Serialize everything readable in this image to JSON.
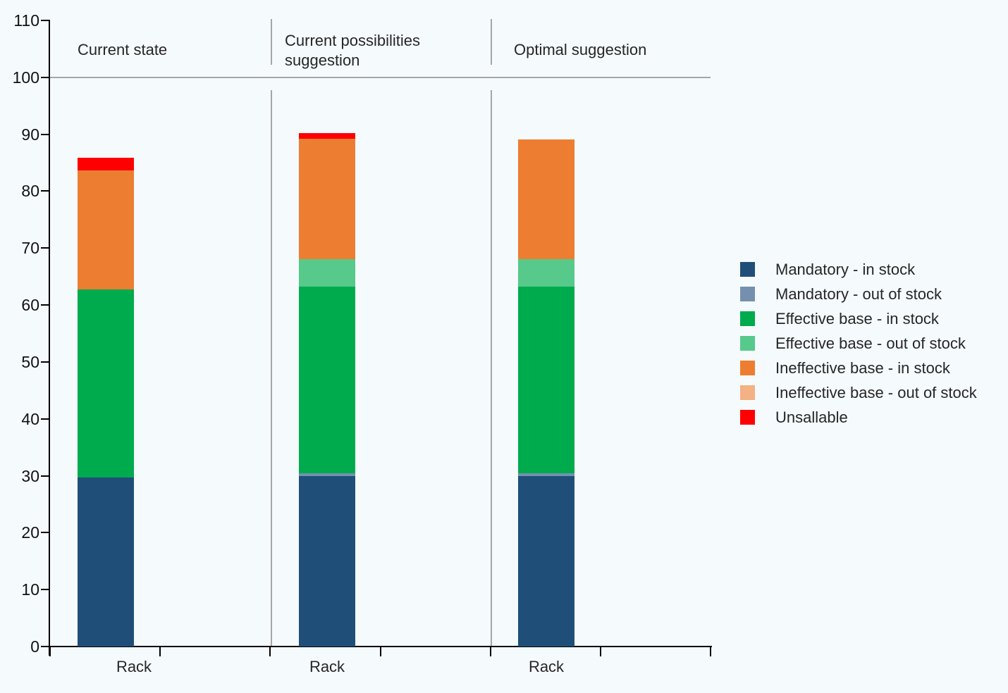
{
  "background": "#f5fafd",
  "colors": {
    "axis": "#000000",
    "grid_gray": "#a6a6a6",
    "text": "#262626"
  },
  "chart_data": {
    "type": "bar",
    "stacked": true,
    "title": "",
    "xlabel": "",
    "ylabel": "",
    "ylim": [
      0,
      110
    ],
    "yticks": [
      0,
      10,
      20,
      30,
      40,
      50,
      60,
      70,
      80,
      90,
      100,
      110
    ],
    "reference_line_y": 100,
    "grid": false,
    "legend_position": "right",
    "stack_order": [
      "mandatory_in",
      "mandatory_out",
      "effective_in",
      "effective_out",
      "ineffective_in",
      "ineffective_out",
      "unsallable"
    ],
    "panels": [
      {
        "title": "Current state",
        "bar_label": "Rack",
        "total": 85.9,
        "values": {
          "mandatory_in": 29.7,
          "mandatory_out": 0,
          "effective_in": 33.0,
          "effective_out": 0,
          "ineffective_in": 21.0,
          "ineffective_out": 0,
          "unsallable": 2.2
        }
      },
      {
        "title": "Current possibilities suggestion",
        "bar_label": "Rack",
        "total": 90.2,
        "values": {
          "mandatory_in": 29.9,
          "mandatory_out": 0.5,
          "effective_in": 32.8,
          "effective_out": 4.9,
          "ineffective_in": 21.1,
          "ineffective_out": 0,
          "unsallable": 1.0
        }
      },
      {
        "title": "Optimal suggestion",
        "bar_label": "Rack",
        "total": 89.1,
        "values": {
          "mandatory_in": 29.9,
          "mandatory_out": 0.5,
          "effective_in": 32.8,
          "effective_out": 4.9,
          "ineffective_in": 21.0,
          "ineffective_out": 0,
          "unsallable": 0
        }
      }
    ]
  },
  "legend": {
    "items": [
      {
        "key": "mandatory_in",
        "label": "Mandatory - in stock",
        "color": "#1f4f78"
      },
      {
        "key": "mandatory_out",
        "label": "Mandatory - out of stock",
        "color": "#7590af"
      },
      {
        "key": "effective_in",
        "label": "Effective base - in stock",
        "color": "#00ab4e"
      },
      {
        "key": "effective_out",
        "label": "Effective base - out of stock",
        "color": "#56c98b"
      },
      {
        "key": "ineffective_in",
        "label": "Ineffective base - in stock",
        "color": "#ed7d31"
      },
      {
        "key": "ineffective_out",
        "label": "Ineffective base - out of stock",
        "color": "#f4b183"
      },
      {
        "key": "unsallable",
        "label": "Unsallable",
        "color": "#ff0000"
      }
    ]
  }
}
